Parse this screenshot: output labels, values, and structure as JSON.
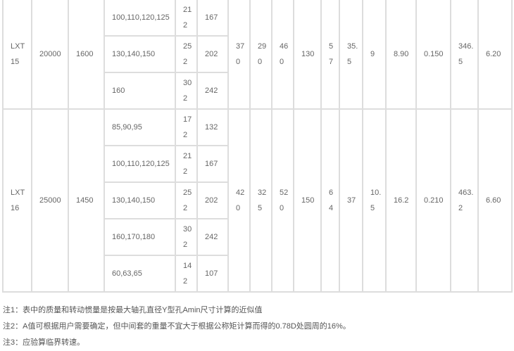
{
  "table": {
    "groups": [
      {
        "model": "LXT15",
        "torque": "20000",
        "speed": "1600",
        "bores": [
          {
            "d": "100,110,120,125",
            "L": "212",
            "L1": "167"
          },
          {
            "d": "130,140,150",
            "L": "252",
            "L1": "202"
          },
          {
            "d": "160",
            "L": "302",
            "L1": "242"
          }
        ],
        "values": [
          "370",
          "290",
          "460",
          "130",
          "57",
          "35.5",
          "9",
          "8.90",
          "0.150",
          "346.5",
          "6.20"
        ]
      },
      {
        "model": "LXT16",
        "torque": "25000",
        "speed": "1450",
        "bores": [
          {
            "d": "85,90,95",
            "L": "172",
            "L1": "132"
          },
          {
            "d": "100,110,120,125",
            "L": "212",
            "L1": "167"
          },
          {
            "d": "130,140,150",
            "L": "252",
            "L1": "202"
          },
          {
            "d": "160,170,180",
            "L": "302",
            "L1": "242"
          },
          {
            "d": "60,63,65",
            "L": "142",
            "L1": "107"
          }
        ],
        "values": [
          "420",
          "325",
          "520",
          "150",
          "64",
          "37",
          "10.5",
          "16.2",
          "0.210",
          "463.2",
          "6.60"
        ]
      }
    ]
  },
  "notes": [
    "注1：表中的质量和转动惯量是按最大轴孔直径Y型孔Amin尺寸计算的近似值",
    "注2：A值可根据用户需要确定，但中间套的重量不宜大于根据公称矩计算而得的0.78D处圆周的16%。",
    "注3：应验算临界转速。"
  ]
}
